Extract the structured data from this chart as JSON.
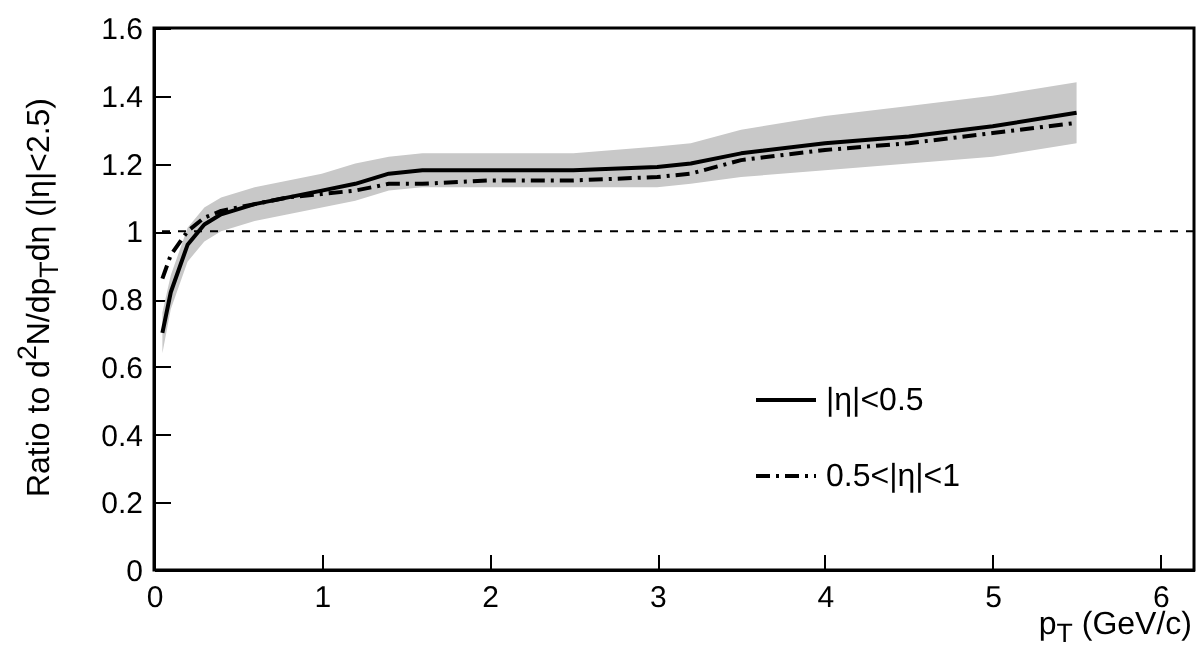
{
  "chart_data": {
    "type": "line",
    "xlabel": "p$_{T}$ (GeV/c)",
    "ylabel": "Ratio to d$^{2}$N/dp$_{T}$dη (|η|<2.5)",
    "x": [
      0.05,
      0.1,
      0.2,
      0.3,
      0.4,
      0.6,
      0.8,
      1.0,
      1.2,
      1.4,
      1.6,
      2.0,
      2.5,
      3.0,
      3.2,
      3.5,
      4.0,
      4.5,
      5.0,
      5.5
    ],
    "series": [
      {
        "name": "|η|<0.5",
        "color": "#000000",
        "line_style": "solid",
        "values": [
          0.7,
          0.82,
          0.96,
          1.02,
          1.05,
          1.08,
          1.1,
          1.12,
          1.14,
          1.17,
          1.18,
          1.18,
          1.18,
          1.19,
          1.2,
          1.23,
          1.26,
          1.28,
          1.31,
          1.35
        ],
        "lower": [
          0.64,
          0.77,
          0.91,
          0.97,
          1.0,
          1.03,
          1.05,
          1.07,
          1.09,
          1.12,
          1.13,
          1.13,
          1.13,
          1.13,
          1.14,
          1.16,
          1.18,
          1.2,
          1.22,
          1.26
        ],
        "upper": [
          0.76,
          0.87,
          1.01,
          1.07,
          1.1,
          1.13,
          1.15,
          1.17,
          1.2,
          1.22,
          1.23,
          1.23,
          1.23,
          1.25,
          1.26,
          1.3,
          1.34,
          1.37,
          1.4,
          1.44
        ]
      },
      {
        "name": "0.5<|η|<1",
        "color": "#000000",
        "line_style": "dashdot",
        "values": [
          0.86,
          0.93,
          1.0,
          1.04,
          1.06,
          1.08,
          1.1,
          1.11,
          1.12,
          1.14,
          1.14,
          1.15,
          1.15,
          1.16,
          1.17,
          1.21,
          1.24,
          1.26,
          1.29,
          1.32
        ]
      }
    ],
    "xlim": [
      0,
      6.2
    ],
    "xticks": [
      0,
      1,
      2,
      3,
      4,
      5,
      6
    ],
    "ylim": [
      0,
      1.6
    ],
    "yticks": [
      0,
      {
        "value": 0.2,
        "label": "0.2"
      },
      {
        "value": 0.4,
        "label": "0.4"
      },
      {
        "value": 0.6,
        "label": "0.6"
      },
      {
        "value": 0.8,
        "label": "0.8"
      },
      1,
      {
        "value": 1.2,
        "label": "1.2"
      },
      {
        "value": 1.4,
        "label": "1.4"
      },
      {
        "value": 1.6,
        "label": "1.6"
      }
    ],
    "ref_lines": [
      {
        "axis": "y",
        "value": 1,
        "color": "#000000",
        "line_style": "dashed"
      }
    ],
    "grid": false,
    "legend": "bottom right",
    "marker": "none"
  }
}
